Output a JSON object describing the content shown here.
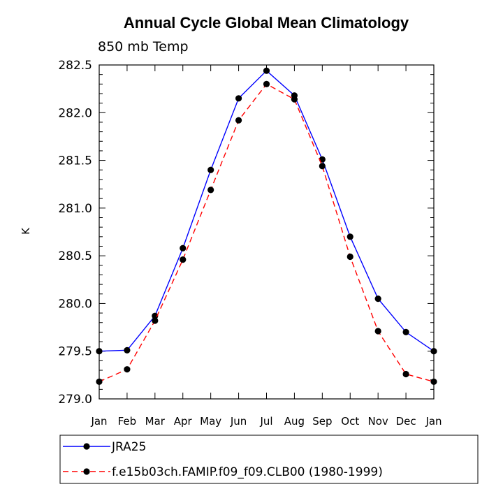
{
  "chart_data": {
    "type": "line",
    "title": "Annual Cycle Global Mean Climatology",
    "subtitle": "850 mb Temp",
    "xlabel": "",
    "ylabel": "K",
    "categories": [
      "Jan",
      "Feb",
      "Mar",
      "Apr",
      "May",
      "Jun",
      "Jul",
      "Aug",
      "Sep",
      "Oct",
      "Nov",
      "Dec",
      "Jan"
    ],
    "ylim": [
      279.0,
      282.5
    ],
    "yticks": [
      "279.0",
      "279.5",
      "280.0",
      "280.5",
      "281.0",
      "281.5",
      "282.0",
      "282.5"
    ],
    "grid": false,
    "legend_position": "bottom-left",
    "series": [
      {
        "name": "JRA25",
        "color": "#0000ff",
        "line_style": "solid",
        "values": [
          279.5,
          279.51,
          279.87,
          280.58,
          281.4,
          282.15,
          282.44,
          282.18,
          281.51,
          280.7,
          280.05,
          279.7,
          279.5
        ]
      },
      {
        "name": "f.e15b03ch.FAMIP.f09_f09.CLB00 (1980-1999)",
        "color": "#ff0000",
        "line_style": "dashed",
        "values": [
          279.18,
          279.31,
          279.82,
          280.46,
          281.19,
          281.92,
          282.3,
          282.14,
          281.44,
          280.49,
          279.71,
          279.26,
          279.18
        ]
      }
    ]
  }
}
